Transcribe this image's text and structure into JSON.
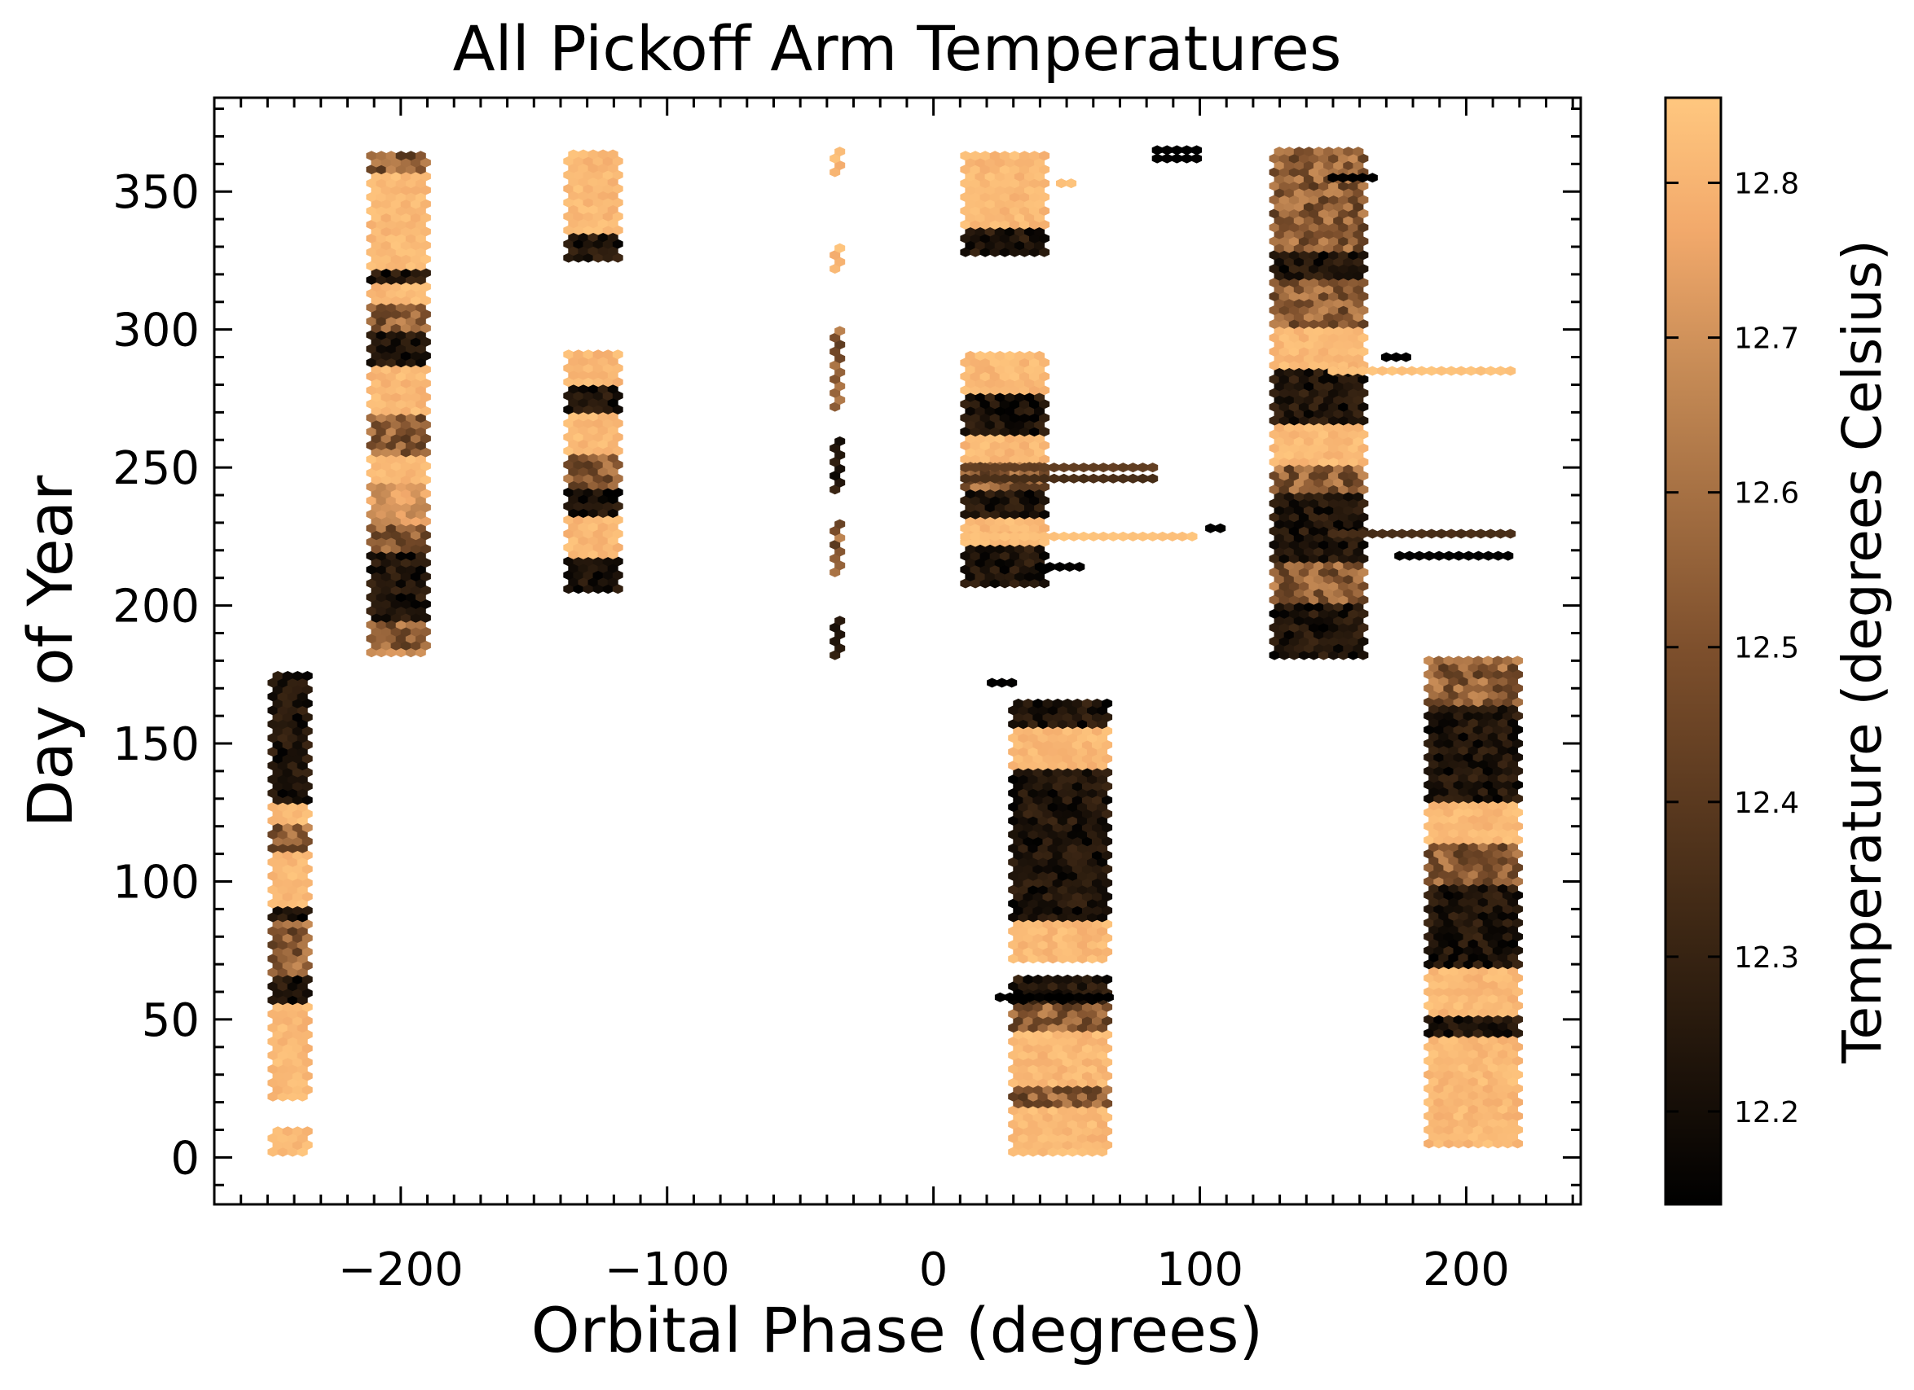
{
  "chart_data": {
    "type": "heatmap",
    "subtype": "hexbin",
    "title": "All Pickoff Arm Temperatures",
    "xlabel": "Orbital Phase (degrees)",
    "ylabel": "Day of Year",
    "colorbar_label": "Temperature (degrees Celsius)",
    "colormap": "copper",
    "colormap_low": "#000000",
    "colormap_high": "#ffc77f",
    "xlim": [
      -270,
      243
    ],
    "ylim": [
      -17,
      384
    ],
    "clim": [
      12.14,
      12.855
    ],
    "xticks": [
      -200,
      -100,
      0,
      100,
      200
    ],
    "xtick_labels": [
      "−200",
      "−100",
      "0",
      "100",
      "200"
    ],
    "yticks": [
      0,
      50,
      100,
      150,
      200,
      250,
      300,
      350
    ],
    "ytick_labels": [
      "0",
      "50",
      "100",
      "150",
      "200",
      "250",
      "300",
      "350"
    ],
    "cticks": [
      12.2,
      12.3,
      12.4,
      12.5,
      12.6,
      12.7,
      12.8
    ],
    "ctick_labels": [
      "12.2",
      "12.3",
      "12.4",
      "12.5",
      "12.6",
      "12.7",
      "12.8"
    ],
    "hex_size": [
      3.7,
      2.5
    ],
    "clusters": [
      {
        "x0": -248,
        "x1": -234,
        "y0": 2,
        "y1": 176,
        "pattern": [
          [
            176,
            128,
            "d"
          ],
          [
            128,
            122,
            "l"
          ],
          [
            122,
            110,
            "m"
          ],
          [
            110,
            90,
            "l"
          ],
          [
            90,
            85,
            "d"
          ],
          [
            85,
            65,
            "m"
          ],
          [
            65,
            57,
            "d"
          ],
          [
            57,
            32,
            "l"
          ],
          [
            30,
            20,
            "l"
          ],
          [
            10,
            2,
            "l"
          ]
        ]
      },
      {
        "x0": -211,
        "x1": -190,
        "y0": 183,
        "y1": 365,
        "pattern": [
          [
            365,
            358,
            "m"
          ],
          [
            358,
            322,
            "l"
          ],
          [
            322,
            318,
            "d"
          ],
          [
            318,
            310,
            "l"
          ],
          [
            310,
            300,
            "m"
          ],
          [
            300,
            288,
            "d"
          ],
          [
            288,
            270,
            "l"
          ],
          [
            270,
            255,
            "m"
          ],
          [
            255,
            245,
            "l"
          ],
          [
            245,
            230,
            "o"
          ],
          [
            230,
            220,
            "m"
          ],
          [
            220,
            195,
            "d"
          ],
          [
            195,
            185,
            "m"
          ],
          [
            185,
            183,
            "o"
          ]
        ]
      },
      {
        "x0": -137,
        "x1": -117,
        "y0": 206,
        "y1": 365,
        "pattern": [
          [
            365,
            336,
            "l"
          ],
          [
            336,
            326,
            "d"
          ],
          [
            292,
            280,
            "l"
          ],
          [
            280,
            270,
            "d"
          ],
          [
            270,
            255,
            "l"
          ],
          [
            255,
            242,
            "m"
          ],
          [
            242,
            232,
            "d"
          ],
          [
            232,
            218,
            "l"
          ],
          [
            218,
            206,
            "d"
          ]
        ]
      },
      {
        "x0": -37,
        "x1": -35,
        "y0": 182,
        "y1": 365,
        "pattern": [
          [
            365,
            355,
            "l"
          ],
          [
            330,
            320,
            "l"
          ],
          [
            300,
            270,
            "m"
          ],
          [
            260,
            240,
            "d"
          ],
          [
            230,
            210,
            "m"
          ],
          [
            195,
            182,
            "d"
          ]
        ]
      },
      {
        "x0": 12,
        "x1": 43,
        "y0": 208,
        "y1": 365,
        "pattern": [
          [
            365,
            336,
            "l"
          ],
          [
            336,
            326,
            "d"
          ],
          [
            292,
            278,
            "l"
          ],
          [
            278,
            262,
            "d"
          ],
          [
            262,
            252,
            "l"
          ],
          [
            252,
            242,
            "m"
          ],
          [
            242,
            232,
            "d"
          ],
          [
            232,
            222,
            "l"
          ],
          [
            222,
            208,
            "d"
          ]
        ]
      },
      {
        "x0": 30,
        "x1": 66,
        "y0": 2,
        "y1": 165,
        "pattern": [
          [
            165,
            155,
            "d"
          ],
          [
            155,
            142,
            "l"
          ],
          [
            142,
            120,
            "d"
          ],
          [
            120,
            85,
            "d"
          ],
          [
            85,
            70,
            "l"
          ],
          [
            65,
            57,
            "d"
          ],
          [
            57,
            47,
            "m"
          ],
          [
            47,
            25,
            "l"
          ],
          [
            25,
            18,
            "m"
          ],
          [
            18,
            2,
            "l"
          ]
        ]
      },
      {
        "x0": 128,
        "x1": 162,
        "y0": 182,
        "y1": 365,
        "pattern": [
          [
            365,
            350,
            "m"
          ],
          [
            350,
            328,
            "m"
          ],
          [
            328,
            318,
            "d"
          ],
          [
            318,
            300,
            "m"
          ],
          [
            300,
            285,
            "l"
          ],
          [
            285,
            265,
            "d"
          ],
          [
            265,
            250,
            "l"
          ],
          [
            250,
            240,
            "m"
          ],
          [
            240,
            215,
            "d"
          ],
          [
            215,
            200,
            "m"
          ],
          [
            200,
            182,
            "d"
          ]
        ]
      },
      {
        "x0": 186,
        "x1": 220,
        "y0": 5,
        "y1": 180,
        "pattern": [
          [
            180,
            165,
            "m"
          ],
          [
            165,
            130,
            "d"
          ],
          [
            130,
            115,
            "l"
          ],
          [
            115,
            100,
            "m"
          ],
          [
            100,
            70,
            "d"
          ],
          [
            70,
            52,
            "l"
          ],
          [
            52,
            45,
            "d"
          ],
          [
            45,
            25,
            "l"
          ],
          [
            25,
            5,
            "l"
          ]
        ]
      }
    ],
    "streaks": [
      {
        "x0": 12,
        "x1": 85,
        "y": 250,
        "value": 12.42
      },
      {
        "x0": 12,
        "x1": 85,
        "y": 246,
        "value": 12.35
      },
      {
        "x0": 12,
        "x1": 100,
        "y": 225,
        "value": 12.84
      },
      {
        "x0": 104,
        "x1": 108,
        "y": 228,
        "value": 12.14
      },
      {
        "x0": 150,
        "x1": 220,
        "y": 285,
        "value": 12.84
      },
      {
        "x0": 150,
        "x1": 220,
        "y": 226,
        "value": 12.35
      },
      {
        "x0": 175,
        "x1": 218,
        "y": 218,
        "value": 12.14
      },
      {
        "x0": 40,
        "x1": 58,
        "y": 214,
        "value": 12.14
      },
      {
        "x0": 84,
        "x1": 100,
        "y": 365,
        "value": 12.14
      },
      {
        "x0": 84,
        "x1": 100,
        "y": 362,
        "value": 12.14
      },
      {
        "x0": 150,
        "x1": 165,
        "y": 355,
        "value": 12.14
      },
      {
        "x0": 25,
        "x1": 68,
        "y": 58,
        "value": 12.14
      },
      {
        "x0": 22,
        "x1": 30,
        "y": 172,
        "value": 12.14
      },
      {
        "x0": 48,
        "x1": 52,
        "y": 353,
        "value": 12.84
      },
      {
        "x0": 170,
        "x1": 180,
        "y": 290,
        "value": 12.14
      }
    ]
  }
}
